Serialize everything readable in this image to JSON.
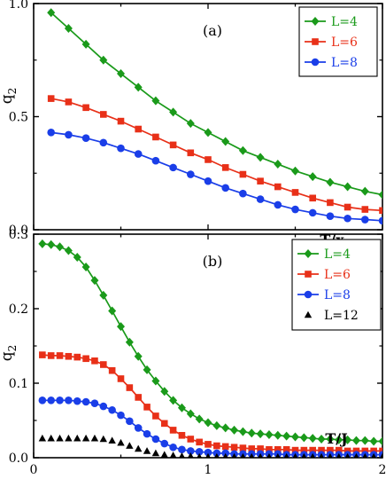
{
  "chart_data": [
    {
      "type": "line",
      "panel_label": "(a)",
      "ylabel": "q",
      "ylabel_sub": "2",
      "xlabel": "T/x",
      "xlim": [
        0,
        2
      ],
      "ylim": [
        0,
        1.0
      ],
      "yticks": [
        "0.0",
        "0.5",
        "1.0"
      ],
      "ytick_values": [
        0,
        0.5,
        1.0
      ],
      "xticks": [],
      "legend_position": "top-right",
      "series": [
        {
          "name": "L=4",
          "color": "#1a9a1a",
          "marker": "diamond",
          "x": [
            0.1,
            0.2,
            0.3,
            0.4,
            0.5,
            0.6,
            0.7,
            0.8,
            0.9,
            1.0,
            1.1,
            1.2,
            1.3,
            1.4,
            1.5,
            1.6,
            1.7,
            1.8,
            1.9,
            2.0
          ],
          "y": [
            0.96,
            0.89,
            0.82,
            0.75,
            0.69,
            0.63,
            0.57,
            0.52,
            0.47,
            0.43,
            0.39,
            0.35,
            0.32,
            0.29,
            0.26,
            0.235,
            0.21,
            0.19,
            0.17,
            0.155
          ]
        },
        {
          "name": "L=6",
          "color": "#e83018",
          "marker": "square",
          "x": [
            0.1,
            0.2,
            0.3,
            0.4,
            0.5,
            0.6,
            0.7,
            0.8,
            0.9,
            1.0,
            1.1,
            1.2,
            1.3,
            1.4,
            1.5,
            1.6,
            1.7,
            1.8,
            1.9,
            2.0
          ],
          "y": [
            0.58,
            0.565,
            0.54,
            0.51,
            0.48,
            0.445,
            0.41,
            0.375,
            0.34,
            0.31,
            0.275,
            0.245,
            0.215,
            0.19,
            0.165,
            0.14,
            0.12,
            0.1,
            0.09,
            0.085
          ]
        },
        {
          "name": "L=8",
          "color": "#1a3ee8",
          "marker": "circle",
          "x": [
            0.1,
            0.2,
            0.3,
            0.4,
            0.5,
            0.6,
            0.7,
            0.8,
            0.9,
            1.0,
            1.1,
            1.2,
            1.3,
            1.4,
            1.5,
            1.6,
            1.7,
            1.8,
            1.9,
            2.0
          ],
          "y": [
            0.43,
            0.42,
            0.405,
            0.385,
            0.36,
            0.335,
            0.305,
            0.275,
            0.245,
            0.215,
            0.185,
            0.16,
            0.135,
            0.11,
            0.09,
            0.075,
            0.06,
            0.05,
            0.045,
            0.04
          ]
        }
      ]
    },
    {
      "type": "line",
      "panel_label": "(b)",
      "ylabel": "q",
      "ylabel_sub": "2",
      "xlabel": "T/J",
      "xlim": [
        0,
        2
      ],
      "ylim": [
        0,
        0.3
      ],
      "yticks": [
        "0.0",
        "0.1",
        "0.2",
        "0.3"
      ],
      "ytick_values": [
        0,
        0.1,
        0.2,
        0.3
      ],
      "xticks": [
        "0",
        "1",
        "2"
      ],
      "xtick_values": [
        0,
        1,
        2
      ],
      "legend_position": "top-right",
      "series": [
        {
          "name": "L=4",
          "color": "#1a9a1a",
          "marker": "diamond",
          "x": [
            0.05,
            0.1,
            0.15,
            0.2,
            0.25,
            0.3,
            0.35,
            0.4,
            0.45,
            0.5,
            0.55,
            0.6,
            0.65,
            0.7,
            0.75,
            0.8,
            0.85,
            0.9,
            0.95,
            1.0,
            1.05,
            1.1,
            1.15,
            1.2,
            1.25,
            1.3,
            1.35,
            1.4,
            1.45,
            1.5,
            1.55,
            1.6,
            1.65,
            1.7,
            1.75,
            1.8,
            1.85,
            1.9,
            1.95,
            2.0
          ],
          "y": [
            0.287,
            0.286,
            0.283,
            0.278,
            0.269,
            0.256,
            0.238,
            0.218,
            0.197,
            0.176,
            0.155,
            0.136,
            0.118,
            0.103,
            0.089,
            0.077,
            0.067,
            0.059,
            0.052,
            0.047,
            0.043,
            0.04,
            0.037,
            0.035,
            0.033,
            0.032,
            0.031,
            0.03,
            0.029,
            0.028,
            0.027,
            0.026,
            0.025,
            0.025,
            0.024,
            0.024,
            0.023,
            0.023,
            0.022,
            0.022
          ]
        },
        {
          "name": "L=6",
          "color": "#e83018",
          "marker": "square",
          "x": [
            0.05,
            0.1,
            0.15,
            0.2,
            0.25,
            0.3,
            0.35,
            0.4,
            0.45,
            0.5,
            0.55,
            0.6,
            0.65,
            0.7,
            0.75,
            0.8,
            0.85,
            0.9,
            0.95,
            1.0,
            1.05,
            1.1,
            1.15,
            1.2,
            1.25,
            1.3,
            1.35,
            1.4,
            1.45,
            1.5,
            1.55,
            1.6,
            1.65,
            1.7,
            1.75,
            1.8,
            1.85,
            1.9,
            1.95,
            2.0
          ],
          "y": [
            0.138,
            0.137,
            0.137,
            0.136,
            0.135,
            0.133,
            0.13,
            0.125,
            0.117,
            0.106,
            0.094,
            0.081,
            0.068,
            0.056,
            0.046,
            0.037,
            0.03,
            0.025,
            0.021,
            0.018,
            0.016,
            0.015,
            0.014,
            0.013,
            0.012,
            0.012,
            0.011,
            0.011,
            0.011,
            0.01,
            0.01,
            0.01,
            0.01,
            0.01,
            0.01,
            0.009,
            0.009,
            0.009,
            0.009,
            0.009
          ]
        },
        {
          "name": "L=8",
          "color": "#1a3ee8",
          "marker": "circle",
          "x": [
            0.05,
            0.1,
            0.15,
            0.2,
            0.25,
            0.3,
            0.35,
            0.4,
            0.45,
            0.5,
            0.55,
            0.6,
            0.65,
            0.7,
            0.75,
            0.8,
            0.85,
            0.9,
            0.95,
            1.0,
            1.05,
            1.1,
            1.15,
            1.2,
            1.25,
            1.3,
            1.35,
            1.4,
            1.45,
            1.5,
            1.55,
            1.6,
            1.65,
            1.7,
            1.75,
            1.8,
            1.85,
            1.9,
            1.95,
            2.0
          ],
          "y": [
            0.077,
            0.077,
            0.077,
            0.077,
            0.076,
            0.075,
            0.073,
            0.069,
            0.064,
            0.057,
            0.049,
            0.04,
            0.032,
            0.025,
            0.019,
            0.014,
            0.011,
            0.009,
            0.008,
            0.007,
            0.006,
            0.006,
            0.005,
            0.005,
            0.005,
            0.005,
            0.005,
            0.005,
            0.004,
            0.004,
            0.004,
            0.004,
            0.004,
            0.004,
            0.004,
            0.004,
            0.004,
            0.004,
            0.004,
            0.004
          ]
        },
        {
          "name": "L=12",
          "color": "#000000",
          "marker": "triangle",
          "x": [
            0.05,
            0.1,
            0.15,
            0.2,
            0.25,
            0.3,
            0.35,
            0.4,
            0.45,
            0.5,
            0.55,
            0.6,
            0.65,
            0.7,
            0.75,
            0.8,
            0.85,
            0.9,
            0.95,
            1.0,
            1.05,
            1.1,
            1.15,
            1.2,
            1.25,
            1.3,
            1.35,
            1.4,
            1.45,
            1.5,
            1.55,
            1.6,
            1.65,
            1.7,
            1.75,
            1.8,
            1.85,
            1.9,
            1.95,
            2.0
          ],
          "y": [
            0.026,
            0.026,
            0.026,
            0.026,
            0.026,
            0.026,
            0.026,
            0.025,
            0.023,
            0.02,
            0.016,
            0.012,
            0.009,
            0.006,
            0.004,
            0.003,
            0.002,
            0.002,
            0.001,
            0.001,
            0.001,
            0.001,
            0.001,
            0.001,
            0.001,
            0.001,
            0.001,
            0.001,
            0.001,
            0.001,
            0.001,
            0.001,
            0.001,
            0.001,
            0.001,
            0.001,
            0.001,
            0.001,
            0.001,
            0.001
          ],
          "line": false
        }
      ]
    }
  ]
}
